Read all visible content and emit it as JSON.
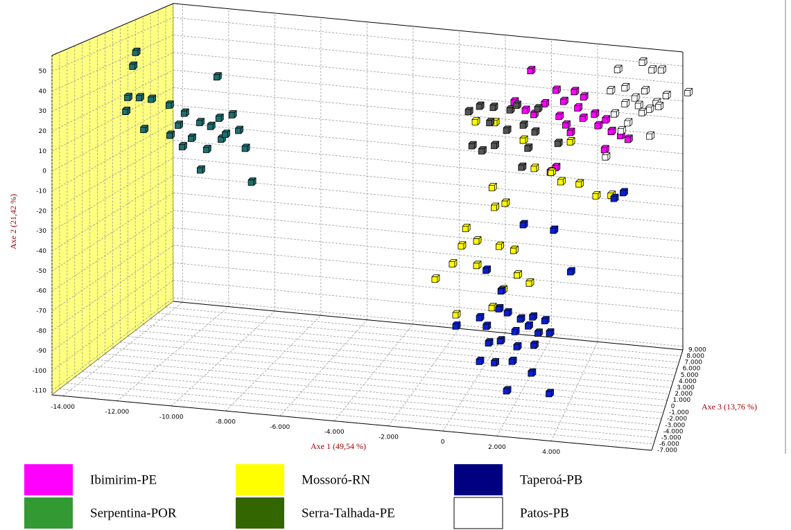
{
  "chart_data": {
    "type": "scatter3d",
    "x_label": "Axe 1 (49,54 %)",
    "y_label": "Axe 2 (21,42 %)",
    "z_label": "Axe 3 (13,76 %)",
    "xlim": [
      -14400,
      7700
    ],
    "ylim": [
      -112,
      58
    ],
    "zlim": [
      -7000,
      9000
    ],
    "xticks": [
      {
        "value": -14000,
        "label": "-14.000"
      },
      {
        "value": -12000,
        "label": "-12.000"
      },
      {
        "value": -10000,
        "label": "-10.000"
      },
      {
        "value": -8000,
        "label": "-8.000"
      },
      {
        "value": -6000,
        "label": "-6.000"
      },
      {
        "value": -4000,
        "label": "-4.000"
      },
      {
        "value": -2000,
        "label": "-2.000"
      },
      0,
      {
        "value": 2000,
        "label": "2.000"
      },
      {
        "value": 4000,
        "label": "4.000"
      }
    ],
    "yticks": [
      -110,
      -100,
      -90,
      -80,
      -70,
      -60,
      -50,
      -40,
      -30,
      -20,
      -10,
      0,
      10,
      20,
      30,
      40,
      50
    ],
    "zticks": [
      {
        "value": -7000,
        "label": "-7.000"
      },
      {
        "value": -6000,
        "label": "-6.000"
      },
      {
        "value": -5000,
        "label": "-5.000"
      },
      {
        "value": -4000,
        "label": "-4.000"
      },
      {
        "value": -3000,
        "label": "-3.000"
      },
      {
        "value": -2000,
        "label": "-2.000"
      },
      {
        "value": -1000,
        "label": "-1.000"
      },
      0,
      {
        "value": 1000,
        "label": "1.000"
      },
      {
        "value": 2000,
        "label": "2.000"
      },
      {
        "value": 3000,
        "label": "3.000"
      },
      {
        "value": 4000,
        "label": "4.000"
      },
      {
        "value": 5000,
        "label": "5.000"
      },
      {
        "value": 6000,
        "label": "6.000"
      },
      {
        "value": 7000,
        "label": "7.000"
      },
      {
        "value": 8000,
        "label": "8.000"
      },
      {
        "value": 9000,
        "label": "9.000"
      }
    ],
    "grid": true,
    "wall_color": "#ffff80",
    "series": [
      {
        "name": "Ibimirim-PE",
        "color": "#ff00ff",
        "marker_color": "#ff00ff",
        "x": [
          2240,
          1550,
          2050,
          2790,
          3260,
          3540,
          3980,
          4370,
          4090,
          3370,
          3650,
          4310,
          4780,
          5200,
          5470,
          4920,
          5830,
          6110,
          3820,
          5200,
          3210,
          3020,
          2380
        ],
        "y": [
          57,
          39,
          36,
          40,
          48,
          42,
          48,
          46,
          39,
          34,
          30,
          34,
          37,
          34,
          29,
          31,
          27,
          25,
          26,
          19,
          6,
          4,
          34
        ],
        "z": [
          1000,
          1200,
          800,
          1000,
          900,
          1100,
          1000,
          800,
          1200,
          1000,
          900,
          1100,
          1000,
          1200,
          800,
          1000,
          900,
          1100,
          1000,
          800,
          1200,
          1000,
          900
        ]
      },
      {
        "name": "Mossoró-RN",
        "color": "#ffff00",
        "marker_color": "#ffff00",
        "x": [
          35,
          780,
          1970,
          2380,
          3070,
          3430,
          4170,
          4860,
          5420,
          3820,
          720,
          780,
          1220,
          -380,
          120,
          -520,
          1000,
          1550,
          -880,
          120,
          2160,
          -1570,
          1140,
          1690,
          -740,
          670
        ],
        "y": [
          27,
          27,
          20,
          5,
          4,
          -1,
          -1,
          -6,
          -6,
          21,
          -7,
          -18,
          -15,
          -31,
          -36,
          -40,
          -38,
          -40,
          -50,
          -49,
          -57,
          -59,
          -61,
          -53,
          -77,
          -72
        ],
        "z": [
          1000,
          1200,
          800,
          1000,
          900,
          1100,
          1000,
          800,
          1200,
          1000,
          900,
          1100,
          1000,
          1200,
          800,
          1000,
          900,
          1100,
          1000,
          800,
          1200,
          1000,
          900,
          1100,
          1000,
          1200
        ]
      },
      {
        "name": "Taperoá-PB",
        "color": "#000080",
        "marker_color": "#0a1fd0",
        "x": [
          5560,
          5910,
          1970,
          3150,
          3840,
          450,
          1060,
          1000,
          1280,
          1830,
          2330,
          2790,
          -740,
          170,
          500,
          1610,
          2160,
          2520,
          2990,
          1060,
          530,
          1690,
          2380,
          780,
          1500,
          2240,
          230,
          1280,
          2990
        ],
        "y": [
          -7,
          -4,
          -25,
          -27,
          -48,
          -52,
          -62,
          -71,
          -74,
          -76,
          -74,
          -76,
          -83,
          -78,
          -81,
          -83,
          -79,
          -83,
          -82,
          -88,
          -91,
          -91,
          -89,
          -101,
          -99,
          -105,
          -100,
          -115,
          -114
        ],
        "z": [
          1000,
          1200,
          800,
          1000,
          900,
          1100,
          1000,
          800,
          1200,
          1000,
          900,
          1100,
          1000,
          1200,
          800,
          1000,
          900,
          1100,
          1000,
          800,
          1200,
          1000,
          900,
          1100,
          1000,
          1200,
          800,
          1000,
          900
        ]
      },
      {
        "name": "Serpentina-POR",
        "color": "#339933",
        "marker_color": "#1f6f6f",
        "x": [
          -13500,
          -13680,
          -13760,
          -13350,
          -12850,
          -13210,
          -10260,
          -12110,
          -12190,
          -11560,
          -10920,
          -10540,
          -10180,
          -9710,
          -9350,
          -10090,
          -10650,
          -9160,
          -11640,
          -10870,
          -8935,
          -11280,
          -9900,
          -11830,
          -13900
        ],
        "y": [
          47,
          39,
          23,
          23,
          23,
          6,
          38,
          21,
          4,
          17,
          13,
          11,
          16,
          18,
          11,
          5,
          -1,
          1,
          -1,
          -12,
          -17,
          4,
          8,
          10,
          15
        ],
        "z": [
          1000,
          1200,
          800,
          1000,
          900,
          1100,
          1000,
          800,
          1200,
          1000,
          900,
          1100,
          1000,
          1200,
          800,
          1000,
          900,
          1100,
          1000,
          800,
          1200,
          1000,
          900,
          1100,
          1000
        ]
      },
      {
        "name": "Serra-Talhada-PE",
        "color": "#336600",
        "marker_color": "#555555",
        "x": [
          -240,
          173,
          780,
          1415,
          1690,
          590,
          1280,
          1970,
          2380,
          -100,
          310,
          780,
          1880,
          2100,
          3350,
          2520
        ],
        "y": [
          32,
          35,
          36,
          35,
          38,
          27,
          24,
          28,
          24,
          14,
          12,
          15,
          5,
          15,
          20,
          37
        ],
        "z": [
          1000,
          1200,
          800,
          1000,
          900,
          1100,
          1000,
          800,
          1200,
          1000,
          900,
          1100,
          1000,
          1200,
          800,
          1000
        ]
      },
      {
        "name": "Patos-PB",
        "color": "#ffffff",
        "marker_color": "#ffffff",
        "x": [
          5120,
          6150,
          6590,
          6970,
          4830,
          5420,
          5850,
          6290,
          6730,
          7170,
          8100,
          5420,
          6000,
          6440,
          6880,
          4980,
          5560,
          6150,
          5270,
          6500,
          4590
        ],
        "y": [
          50,
          55,
          52,
          52,
          38,
          40,
          35,
          40,
          33,
          38,
          41,
          31,
          31,
          29,
          32,
          25,
          21,
          27,
          16,
          15,
          0
        ],
        "z": [
          6600,
          6800,
          6400,
          6600,
          6500,
          6700,
          6600,
          6400,
          6800,
          6600,
          6500,
          6700,
          6600,
          6800,
          6400,
          6600,
          6500,
          6700,
          6600,
          6400,
          6800
        ]
      }
    ]
  }
}
